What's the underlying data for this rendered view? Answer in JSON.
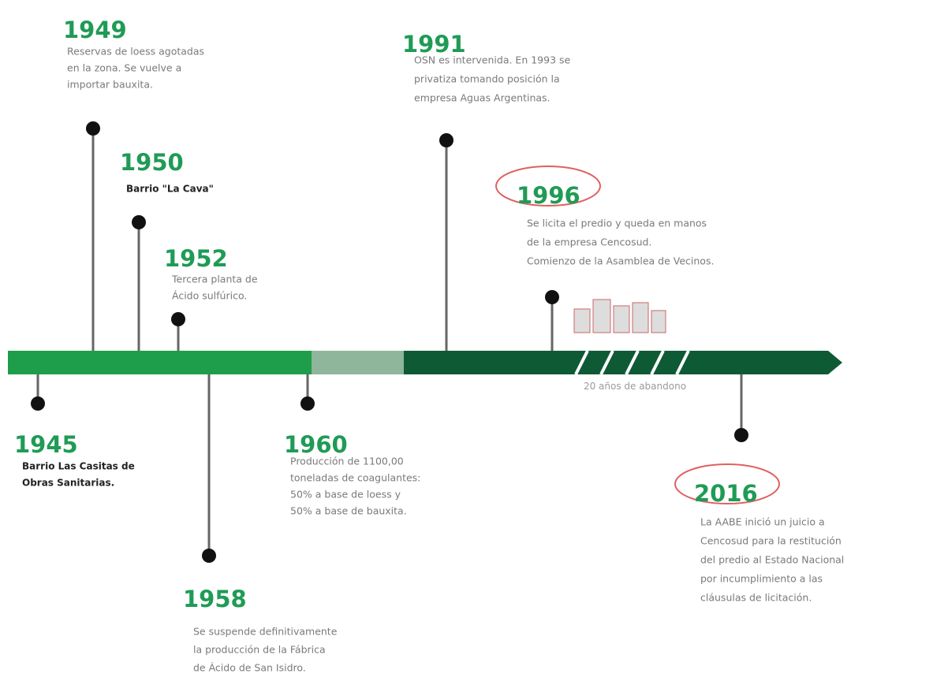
{
  "events": [
    {
      "year": "1949",
      "lines": [
        "Reservas de loess agotadas",
        "en la zona. Se vuelve a",
        "importar bauxita."
      ]
    },
    {
      "year": "1950",
      "lines": [
        "Barrio \"La Cava\""
      ]
    },
    {
      "year": "1952",
      "lines": [
        "Tercera planta de",
        "Ácido sulfúrico."
      ]
    },
    {
      "year": "1945",
      "lines": [
        "Barrio Las Casitas de",
        "Obras Sanitarias."
      ]
    },
    {
      "year": "1958",
      "lines": [
        "Se suspende definitivamente",
        "la producción de la Fábrica",
        "de Ácido de San Isidro."
      ]
    },
    {
      "year": "1960",
      "lines": [
        "Producción de 1100,00",
        "toneladas de coagulantes:",
        "50% a base de loess y",
        "50% a base de bauxita."
      ]
    },
    {
      "year": "1991",
      "lines": [
        "OSN es intervenida. En 1993 se",
        "privatiza tomando posición la",
        "empresa Aguas Argentinas."
      ]
    },
    {
      "year": "1996",
      "lines": [
        "Se licita el predio y queda en manos",
        "de la empresa Cencosud.",
        "Comienzo de la Asamblea de Vecinos."
      ]
    },
    {
      "year": "2016",
      "lines": [
        "La AABE inició un juicio a",
        "Cencosud para la restitución",
        "del predio al Estado Nacional",
        "por incumplimiento a las",
        "cláusulas de licitación."
      ]
    }
  ],
  "abandon_label": "20 años de abandono"
}
